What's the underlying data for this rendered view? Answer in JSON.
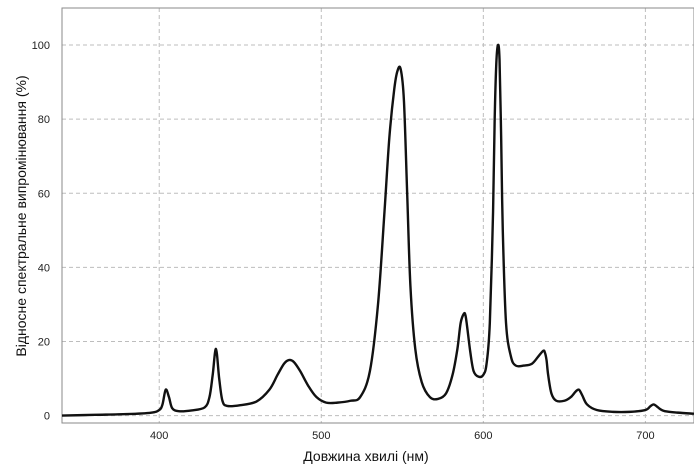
{
  "chart_data": {
    "type": "line",
    "xlabel": "Довжина хвилі (нм)",
    "ylabel": "Відносне спектральне випромінювання (%)",
    "xlim": [
      340,
      730
    ],
    "ylim": [
      -2,
      110
    ],
    "xticks": [
      400,
      500,
      600,
      700
    ],
    "yticks": [
      0,
      20,
      40,
      60,
      80,
      100
    ],
    "grid": true,
    "line_color": "#111111",
    "series": [
      {
        "x": [
          340,
          360,
          380,
          395,
          400,
          402,
          404,
          406,
          408,
          412,
          420,
          428,
          431,
          433,
          435,
          437,
          439,
          442,
          450,
          460,
          468,
          473,
          477,
          480,
          483,
          487,
          492,
          497,
          503,
          510,
          518,
          524,
          530,
          535,
          539,
          542,
          545,
          547,
          549,
          551,
          553,
          555,
          558,
          562,
          567,
          572,
          577,
          581,
          584,
          586,
          588,
          589,
          590,
          592,
          594,
          597,
          600,
          602,
          604,
          606,
          607,
          608,
          609,
          610,
          611,
          612,
          614,
          617,
          620,
          625,
          630,
          634,
          637,
          638,
          639,
          640,
          642,
          645,
          650,
          654,
          657,
          659,
          661,
          664,
          670,
          680,
          690,
          700,
          703,
          705,
          707,
          709,
          712,
          720,
          730
        ],
        "y": [
          0,
          0.2,
          0.4,
          0.8,
          1.5,
          3,
          7,
          5,
          2,
          1.2,
          1.4,
          2.2,
          5,
          11,
          18,
          10,
          4,
          2.6,
          2.8,
          3.8,
          7,
          11,
          14,
          15,
          14.5,
          12,
          8,
          5,
          3.5,
          3.5,
          4,
          5,
          12,
          30,
          55,
          75,
          88,
          93,
          93.5,
          85,
          60,
          35,
          18,
          9,
          5,
          4.5,
          6,
          11,
          18,
          25,
          27.5,
          27,
          24,
          17,
          12,
          10.5,
          11,
          14,
          25,
          55,
          80,
          95,
          100,
          96,
          75,
          50,
          25,
          16,
          13.5,
          13.5,
          14,
          16,
          17.5,
          17,
          15,
          11,
          6,
          4,
          4,
          5,
          6.5,
          7,
          5.5,
          3,
          1.5,
          1,
          1,
          1.5,
          2.5,
          3,
          2.5,
          1.8,
          1.2,
          0.8,
          0.5
        ]
      }
    ]
  }
}
